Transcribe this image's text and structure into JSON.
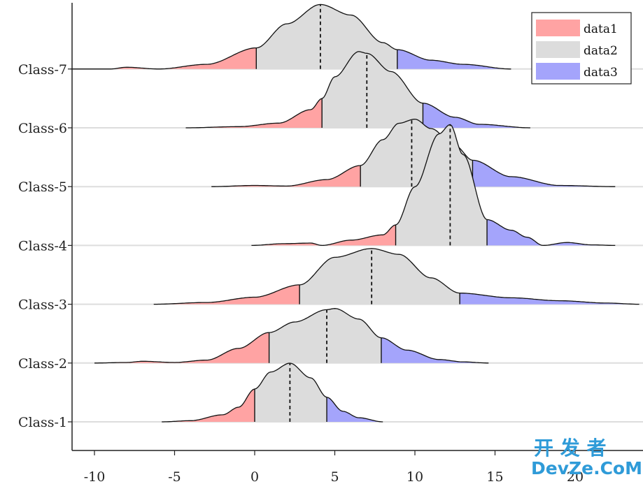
{
  "chart_data": {
    "type": "ridgeline",
    "title": "",
    "xlabel": "",
    "ylabel": "",
    "xlim": [
      -11.5,
      24
    ],
    "xticks": [
      -10,
      -5,
      0,
      5,
      10,
      15,
      20
    ],
    "categories": [
      "Class-1",
      "Class-2",
      "Class-3",
      "Class-4",
      "Class-5",
      "Class-6",
      "Class-7"
    ],
    "legend": [
      "data1",
      "data2",
      "data3"
    ],
    "legend_position": "top-right",
    "colors": {
      "data1": "#ffa3a3",
      "data2": "#dcdcdc",
      "data3": "#a4a4fb"
    },
    "ridges": [
      {
        "name": "Class-1",
        "range": [
          -5.8,
          8.0
        ],
        "split_low": 0.0,
        "split_high": 4.5,
        "median": 2.2,
        "density": [
          [
            -5.8,
            0.0
          ],
          [
            -4.0,
            0.02
          ],
          [
            -2.0,
            0.12
          ],
          [
            -1.0,
            0.25
          ],
          [
            0.0,
            0.56
          ],
          [
            1.0,
            0.85
          ],
          [
            2.2,
            1.0
          ],
          [
            3.5,
            0.75
          ],
          [
            4.5,
            0.42
          ],
          [
            5.5,
            0.18
          ],
          [
            6.5,
            0.07
          ],
          [
            8.0,
            0.0
          ]
        ]
      },
      {
        "name": "Class-2",
        "range": [
          -10.0,
          14.6
        ],
        "split_low": 0.9,
        "split_high": 7.9,
        "median": 4.5,
        "density": [
          [
            -10.0,
            0.0
          ],
          [
            -8.0,
            0.01
          ],
          [
            -7.0,
            0.03
          ],
          [
            -5.0,
            0.01
          ],
          [
            -3.0,
            0.05
          ],
          [
            -1.0,
            0.25
          ],
          [
            0.9,
            0.52
          ],
          [
            2.5,
            0.7
          ],
          [
            4.5,
            0.91
          ],
          [
            5.0,
            0.93
          ],
          [
            6.5,
            0.75
          ],
          [
            7.9,
            0.43
          ],
          [
            9.5,
            0.22
          ],
          [
            11.5,
            0.06
          ],
          [
            13.0,
            0.02
          ],
          [
            14.6,
            0.0
          ]
        ]
      },
      {
        "name": "Class-3",
        "range": [
          -6.3,
          24.0
        ],
        "split_low": 2.8,
        "split_high": 12.8,
        "median": 7.3,
        "density": [
          [
            -6.3,
            0.0
          ],
          [
            -3.0,
            0.03
          ],
          [
            0.0,
            0.12
          ],
          [
            2.8,
            0.33
          ],
          [
            5.0,
            0.8
          ],
          [
            7.3,
            0.95
          ],
          [
            9.0,
            0.85
          ],
          [
            11.0,
            0.45
          ],
          [
            12.8,
            0.19
          ],
          [
            16.0,
            0.11
          ],
          [
            19.0,
            0.06
          ],
          [
            22.0,
            0.02
          ],
          [
            24.0,
            0.0
          ]
        ]
      },
      {
        "name": "Class-4",
        "range": [
          -0.2,
          22.5
        ],
        "split_low": 8.8,
        "split_high": 14.5,
        "median": 12.2,
        "density": [
          [
            -0.2,
            0.0
          ],
          [
            1.8,
            0.03
          ],
          [
            3.5,
            0.04
          ],
          [
            4.2,
            0.0
          ],
          [
            6.0,
            0.09
          ],
          [
            8.0,
            0.18
          ],
          [
            8.8,
            0.35
          ],
          [
            10.0,
            1.0
          ],
          [
            11.5,
            1.9
          ],
          [
            12.2,
            2.06
          ],
          [
            13.0,
            1.55
          ],
          [
            14.5,
            0.44
          ],
          [
            16.0,
            0.26
          ],
          [
            17.0,
            0.14
          ],
          [
            18.0,
            0.0
          ],
          [
            19.5,
            0.05
          ],
          [
            21.0,
            0.01
          ],
          [
            22.5,
            0.0
          ]
        ]
      },
      {
        "name": "Class-5",
        "range": [
          -2.7,
          22.5
        ],
        "split_low": 6.6,
        "split_high": 13.6,
        "median": 9.8,
        "density": [
          [
            -2.7,
            0.0
          ],
          [
            0.0,
            0.02
          ],
          [
            2.0,
            0.01
          ],
          [
            4.5,
            0.12
          ],
          [
            6.6,
            0.36
          ],
          [
            8.0,
            0.8
          ],
          [
            9.0,
            1.08
          ],
          [
            10.0,
            1.15
          ],
          [
            11.0,
            0.99
          ],
          [
            12.5,
            0.7
          ],
          [
            13.6,
            0.45
          ],
          [
            16.0,
            0.17
          ],
          [
            19.0,
            0.02
          ],
          [
            22.5,
            0.0
          ]
        ]
      },
      {
        "name": "Class-6",
        "range": [
          -4.3,
          17.2
        ],
        "split_low": 4.2,
        "split_high": 10.5,
        "median": 7.0,
        "density": [
          [
            -4.3,
            0.0
          ],
          [
            -1.0,
            0.02
          ],
          [
            1.5,
            0.08
          ],
          [
            3.5,
            0.31
          ],
          [
            4.2,
            0.5
          ],
          [
            5.0,
            0.87
          ],
          [
            6.5,
            1.3
          ],
          [
            7.0,
            1.27
          ],
          [
            8.5,
            0.96
          ],
          [
            10.5,
            0.42
          ],
          [
            12.5,
            0.18
          ],
          [
            14.0,
            0.06
          ],
          [
            17.2,
            0.0
          ]
        ]
      },
      {
        "name": "Class-7",
        "range": [
          -11.5,
          16.0
        ],
        "split_low": 0.1,
        "split_high": 8.9,
        "median": 4.1,
        "density": [
          [
            -11.5,
            0.0
          ],
          [
            -9.0,
            0.0
          ],
          [
            -8.0,
            0.03
          ],
          [
            -6.0,
            0.0
          ],
          [
            -3.0,
            0.08
          ],
          [
            0.1,
            0.36
          ],
          [
            2.0,
            0.77
          ],
          [
            4.1,
            1.1
          ],
          [
            6.0,
            0.92
          ],
          [
            8.0,
            0.45
          ],
          [
            8.9,
            0.33
          ],
          [
            11.0,
            0.15
          ],
          [
            13.0,
            0.08
          ],
          [
            16.0,
            0.0
          ]
        ]
      }
    ]
  },
  "watermark": {
    "chinese": "开 发 者",
    "english": "DevZe.CoM"
  }
}
